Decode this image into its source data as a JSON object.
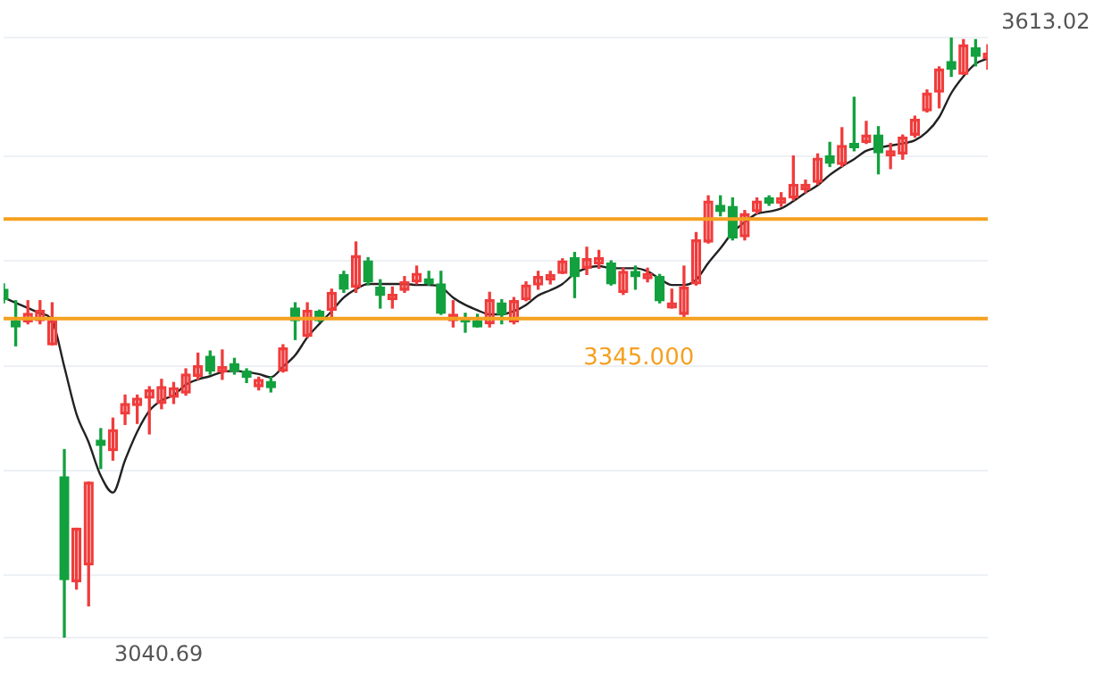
{
  "chart_data": {
    "type": "candlestick",
    "categories": [
      null,
      null,
      null,
      null,
      null,
      null,
      null,
      null,
      null,
      null,
      null,
      null,
      null,
      null,
      null,
      null,
      null,
      null,
      null,
      null,
      null,
      null,
      null,
      null,
      null,
      null,
      null,
      null,
      null,
      null,
      null,
      null,
      null,
      null,
      null,
      null,
      null,
      null,
      null,
      null,
      null,
      null,
      null,
      null,
      null,
      null,
      null,
      null,
      null,
      null,
      null,
      null,
      null,
      null,
      null,
      null,
      null,
      null,
      null,
      null,
      null,
      null,
      null,
      null,
      null,
      null,
      null,
      null,
      null,
      null,
      null,
      null,
      null,
      null,
      null,
      null,
      null,
      null,
      null,
      null,
      null,
      null
    ],
    "ohlc": [
      [
        3373,
        3378,
        3360,
        3363
      ],
      [
        3343,
        3362,
        3319,
        3337
      ],
      [
        3342,
        3362,
        3340,
        3350
      ],
      [
        3343,
        3362,
        3340,
        3353
      ],
      [
        3320,
        3360,
        3320,
        3343
      ],
      [
        3194,
        3220,
        3040.69,
        3096
      ],
      [
        3094,
        3145,
        3087,
        3145
      ],
      [
        3110,
        3189,
        3071,
        3189
      ],
      [
        3229,
        3240,
        3202,
        3224
      ],
      [
        3219,
        3250,
        3210,
        3239
      ],
      [
        3254,
        3272,
        3244,
        3264
      ],
      [
        3262,
        3272,
        3245,
        3269
      ],
      [
        3269,
        3280,
        3235,
        3277
      ],
      [
        3264,
        3287,
        3259,
        3280
      ],
      [
        3270,
        3284,
        3264,
        3279
      ],
      [
        3274,
        3297,
        3272,
        3292
      ],
      [
        3290,
        3312,
        3287,
        3300
      ],
      [
        3309,
        3314,
        3292,
        3295
      ],
      [
        3294,
        3315,
        3287,
        3299
      ],
      [
        3302,
        3307,
        3292,
        3295
      ],
      [
        3295,
        3297,
        3284,
        3289
      ],
      [
        3280,
        3289,
        3277,
        3287
      ],
      [
        3285,
        3289,
        3275,
        3279
      ],
      [
        3295,
        3320,
        3294,
        3317
      ],
      [
        3355,
        3360,
        3325,
        3343
      ],
      [
        3328,
        3360,
        3327,
        3353
      ],
      [
        3352,
        3353,
        3342,
        3343
      ],
      [
        3353,
        3373,
        3345,
        3370
      ],
      [
        3387,
        3390,
        3370,
        3373
      ],
      [
        3375,
        3418,
        3370,
        3405
      ],
      [
        3400,
        3403,
        3377,
        3380
      ],
      [
        3375,
        3382,
        3355,
        3367
      ],
      [
        3363,
        3375,
        3355,
        3368
      ],
      [
        3372,
        3385,
        3370,
        3380
      ],
      [
        3380,
        3395,
        3378,
        3388
      ],
      [
        3383,
        3390,
        3377,
        3378
      ],
      [
        3378,
        3390,
        3349,
        3350
      ],
      [
        3343,
        3362,
        3337,
        3349
      ],
      [
        3345,
        3350,
        3332,
        3342
      ],
      [
        3343,
        3349,
        3337,
        3337
      ],
      [
        3340,
        3370,
        3337,
        3363
      ],
      [
        3360,
        3363,
        3340,
        3349
      ],
      [
        3342,
        3365,
        3340,
        3362
      ],
      [
        3363,
        3380,
        3362,
        3377
      ],
      [
        3377,
        3390,
        3373,
        3385
      ],
      [
        3382,
        3390,
        3378,
        3387
      ],
      [
        3388,
        3402,
        3388,
        3400
      ],
      [
        3403,
        3408,
        3365,
        3385
      ],
      [
        3393,
        3413,
        3387,
        3402
      ],
      [
        3397,
        3410,
        3393,
        3403
      ],
      [
        3398,
        3400,
        3377,
        3378
      ],
      [
        3370,
        3393,
        3368,
        3390
      ],
      [
        3390,
        3395,
        3373,
        3385
      ],
      [
        3383,
        3393,
        3380,
        3388
      ],
      [
        3385,
        3387,
        3360,
        3362
      ],
      [
        3355,
        3373,
        3355,
        3360
      ],
      [
        3349,
        3395,
        3347,
        3375
      ],
      [
        3378,
        3427,
        3377,
        3420
      ],
      [
        3418,
        3462,
        3417,
        3457
      ],
      [
        3453,
        3462,
        3443,
        3447
      ],
      [
        3452,
        3460,
        3420,
        3422
      ],
      [
        3423,
        3448,
        3420,
        3445
      ],
      [
        3447,
        3460,
        3445,
        3457
      ],
      [
        3460,
        3462,
        3453,
        3455
      ],
      [
        3455,
        3465,
        3452,
        3460
      ],
      [
        3460,
        3500,
        3458,
        3473
      ],
      [
        3468,
        3477,
        3465,
        3473
      ],
      [
        3475,
        3502,
        3473,
        3498
      ],
      [
        3500,
        3513,
        3490,
        3493
      ],
      [
        3492,
        3527,
        3490,
        3510
      ],
      [
        3512,
        3556,
        3505,
        3508
      ],
      [
        3513,
        3533,
        3512,
        3520
      ],
      [
        3520,
        3528,
        3483,
        3503
      ],
      [
        3500,
        3512,
        3488,
        3505
      ],
      [
        3502,
        3520,
        3497,
        3518
      ],
      [
        3520,
        3538,
        3518,
        3535
      ],
      [
        3543,
        3563,
        3542,
        3560
      ],
      [
        3561,
        3585,
        3546,
        3583
      ],
      [
        3590,
        3613.02,
        3576,
        3583
      ],
      [
        3578,
        3611,
        3578,
        3606
      ],
      [
        3603,
        3611,
        3586,
        3595
      ],
      [
        3593,
        3606,
        3583,
        3598
      ]
    ],
    "colors": [
      "#12a13e",
      "#12a13e",
      "#f03c3c",
      "#f03c3c",
      "#f03c3c",
      "#12a13e",
      "#f03c3c",
      "#f03c3c",
      "#12a13e",
      "#f03c3c",
      "#f03c3c",
      "#f03c3c",
      "#f03c3c",
      "#f03c3c",
      "#f03c3c",
      "#f03c3c",
      "#f03c3c",
      "#12a13e",
      "#f03c3c",
      "#12a13e",
      "#12a13e",
      "#f03c3c",
      "#12a13e",
      "#f03c3c",
      "#12a13e",
      "#f03c3c",
      "#12a13e",
      "#f03c3c",
      "#12a13e",
      "#f03c3c",
      "#12a13e",
      "#12a13e",
      "#f03c3c",
      "#f03c3c",
      "#f03c3c",
      "#12a13e",
      "#12a13e",
      "#f03c3c",
      "#12a13e",
      "#12a13e",
      "#f03c3c",
      "#12a13e",
      "#f03c3c",
      "#f03c3c",
      "#f03c3c",
      "#f03c3c",
      "#f03c3c",
      "#12a13e",
      "#f03c3c",
      "#f03c3c",
      "#12a13e",
      "#f03c3c",
      "#12a13e",
      "#f03c3c",
      "#12a13e",
      "#f03c3c",
      "#f03c3c",
      "#f03c3c",
      "#f03c3c",
      "#12a13e",
      "#12a13e",
      "#f03c3c",
      "#f03c3c",
      "#12a13e",
      "#f03c3c",
      "#f03c3c",
      "#f03c3c",
      "#f03c3c",
      "#12a13e",
      "#f03c3c",
      "#12a13e",
      "#f03c3c",
      "#12a13e",
      "#f03c3c",
      "#f03c3c",
      "#f03c3c",
      "#f03c3c",
      "#f03c3c",
      "#12a13e",
      "#f03c3c",
      "#12a13e",
      "#f03c3c"
    ],
    "series": [
      {
        "type": "line",
        "color": "#222222",
        "values": [
          3365,
          3360,
          3355,
          3350,
          3343,
          3299,
          3254,
          3227,
          3195,
          3179,
          3210,
          3237,
          3257,
          3267,
          3272,
          3282,
          3287,
          3290,
          3294,
          3295,
          3294,
          3292,
          3289,
          3299,
          3310,
          3327,
          3340,
          3352,
          3365,
          3373,
          3378,
          3378,
          3378,
          3378,
          3377,
          3377,
          3375,
          3365,
          3358,
          3353,
          3349,
          3349,
          3352,
          3358,
          3367,
          3372,
          3378,
          3388,
          3393,
          3395,
          3393,
          3393,
          3393,
          3390,
          3383,
          3377,
          3377,
          3382,
          3398,
          3412,
          3427,
          3437,
          3445,
          3447,
          3450,
          3457,
          3465,
          3472,
          3482,
          3490,
          3497,
          3505,
          3508,
          3510,
          3512,
          3515,
          3523,
          3537,
          3560,
          3576,
          3588,
          3593
        ]
      }
    ],
    "ref_lines": [
      {
        "axis": "y",
        "value": 3440,
        "color": "#f5a020"
      },
      {
        "axis": "y",
        "value": 3345,
        "label": "3345.000",
        "color": "#f5a020"
      }
    ],
    "annotations": [
      "3613.02",
      "3040.69"
    ],
    "grid": "y",
    "tick_labels": false
  }
}
